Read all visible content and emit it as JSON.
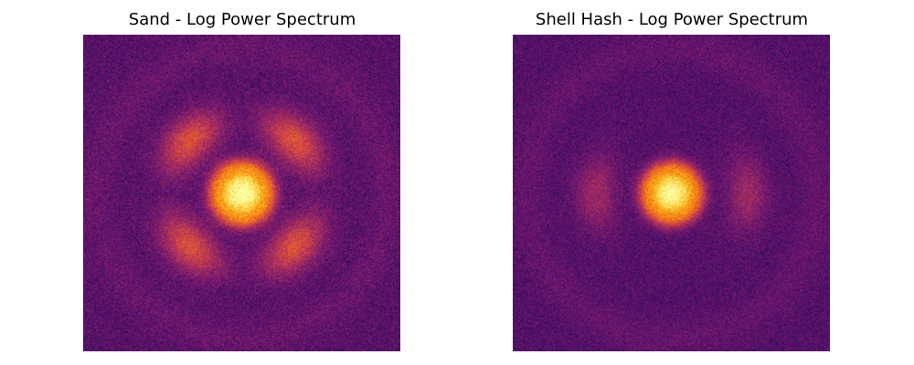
{
  "chart_data": [
    {
      "type": "heatmap",
      "title": "Sand - Log Power Spectrum",
      "axes_visible": false,
      "colormap": "inferno",
      "features": {
        "central_peak": {
          "radius": 0.145,
          "intensity": 1.0
        },
        "ring": {
          "radius": 0.235,
          "width": 0.048,
          "intensity": 0.34,
          "visible_lobes_deg": [
            45,
            225,
            135,
            315
          ]
        },
        "noise_floor": 0.26,
        "noise_amplitude": 0.09
      }
    },
    {
      "type": "heatmap",
      "title": "Shell Hash - Log Power Spectrum",
      "axes_visible": false,
      "colormap": "inferno",
      "features": {
        "central_peak": {
          "radius": 0.14,
          "intensity": 0.98
        },
        "ring": {
          "radius": 0.24,
          "width": 0.045,
          "intensity": 0.18,
          "visible_lobes_deg": [
            0,
            180
          ]
        },
        "noise_floor": 0.25,
        "noise_amplitude": 0.08
      }
    }
  ]
}
